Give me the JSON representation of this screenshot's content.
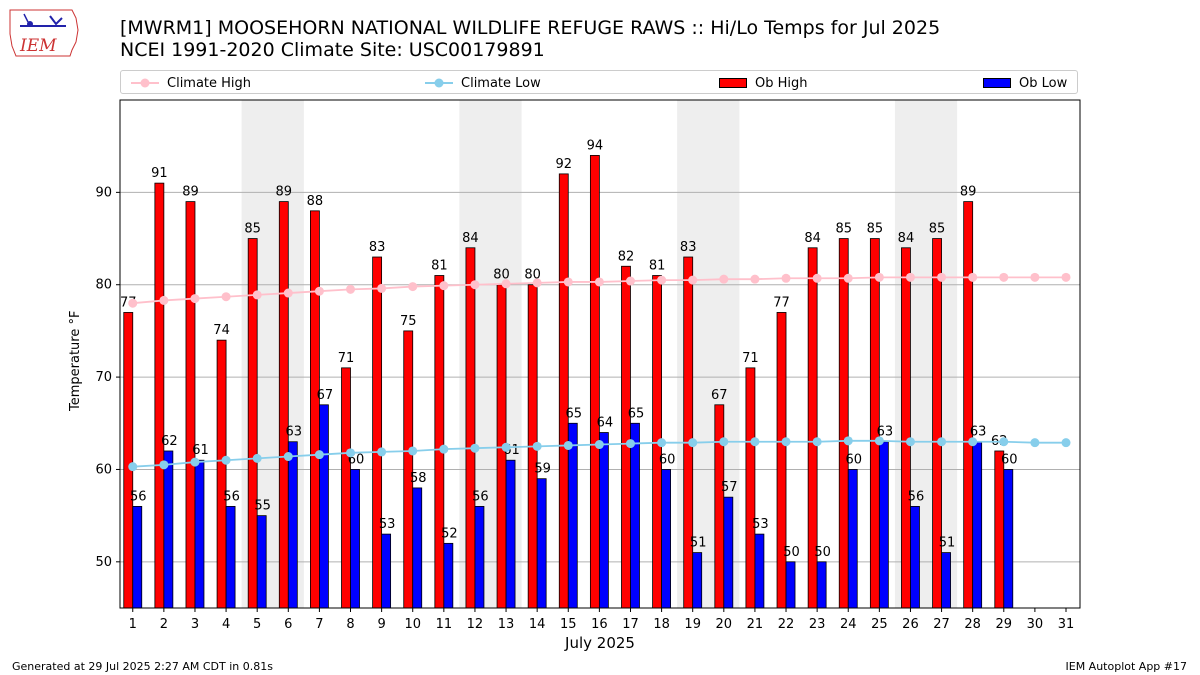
{
  "header": {
    "title_line1": "[MWRM1] MOOSEHORN NATIONAL WILDLIFE REFUGE RAWS :: Hi/Lo Temps for Jul 2025",
    "title_line2": "NCEI 1991-2020 Climate Site: USC00179891",
    "logo_text": "IEM"
  },
  "legend": {
    "climate_high": "Climate High",
    "climate_low": "Climate Low",
    "ob_high": "Ob High",
    "ob_low": "Ob Low"
  },
  "footer": {
    "generated": "Generated at 29 Jul 2025 2:27 AM CDT in 0.81s",
    "app": "IEM Autoplot App #17"
  },
  "colors": {
    "ob_high": "#ff0000",
    "ob_low": "#0000ff",
    "climate_high": "#ffc0cb",
    "climate_low": "#87ceeb",
    "weekend_shade": "#eeeeee",
    "grid": "#b0b0b0"
  },
  "chart_data": {
    "type": "bar",
    "xlabel": "July 2025",
    "ylabel": "Temperature °F",
    "ylim": [
      45,
      100
    ],
    "yticks": [
      50,
      60,
      70,
      80,
      90
    ],
    "grid": "horizontal",
    "legend_placement": "top",
    "categories": [
      1,
      2,
      3,
      4,
      5,
      6,
      7,
      8,
      9,
      10,
      11,
      12,
      13,
      14,
      15,
      16,
      17,
      18,
      19,
      20,
      21,
      22,
      23,
      24,
      25,
      26,
      27,
      28,
      29,
      30,
      31
    ],
    "shaded_days": [
      [
        5,
        6
      ],
      [
        12,
        13
      ],
      [
        19,
        20
      ],
      [
        26,
        27
      ]
    ],
    "series": [
      {
        "name": "Ob High",
        "type": "bar",
        "values": [
          77,
          91,
          89,
          74,
          85,
          89,
          88,
          71,
          83,
          75,
          81,
          84,
          80,
          80,
          92,
          94,
          82,
          81,
          83,
          67,
          71,
          77,
          84,
          85,
          85,
          84,
          85,
          89,
          62,
          null,
          null
        ]
      },
      {
        "name": "Ob Low",
        "type": "bar",
        "values": [
          56,
          62,
          61,
          56,
          55,
          63,
          67,
          60,
          53,
          58,
          52,
          56,
          61,
          59,
          65,
          64,
          65,
          60,
          51,
          57,
          53,
          50,
          50,
          60,
          63,
          56,
          51,
          63,
          60,
          null,
          null
        ]
      },
      {
        "name": "Climate High",
        "type": "line",
        "values": [
          78.0,
          78.3,
          78.5,
          78.7,
          78.9,
          79.1,
          79.3,
          79.5,
          79.6,
          79.8,
          79.9,
          80.0,
          80.1,
          80.2,
          80.3,
          80.3,
          80.4,
          80.5,
          80.5,
          80.6,
          80.6,
          80.7,
          80.7,
          80.7,
          80.8,
          80.8,
          80.8,
          80.8,
          80.8,
          80.8,
          80.8
        ]
      },
      {
        "name": "Climate Low",
        "type": "line",
        "values": [
          60.3,
          60.5,
          60.8,
          61.0,
          61.2,
          61.4,
          61.6,
          61.8,
          61.9,
          62.0,
          62.2,
          62.3,
          62.4,
          62.5,
          62.6,
          62.7,
          62.8,
          62.9,
          62.9,
          63.0,
          63.0,
          63.0,
          63.0,
          63.1,
          63.1,
          63.0,
          63.0,
          63.0,
          63.0,
          62.9,
          62.9
        ]
      }
    ]
  }
}
